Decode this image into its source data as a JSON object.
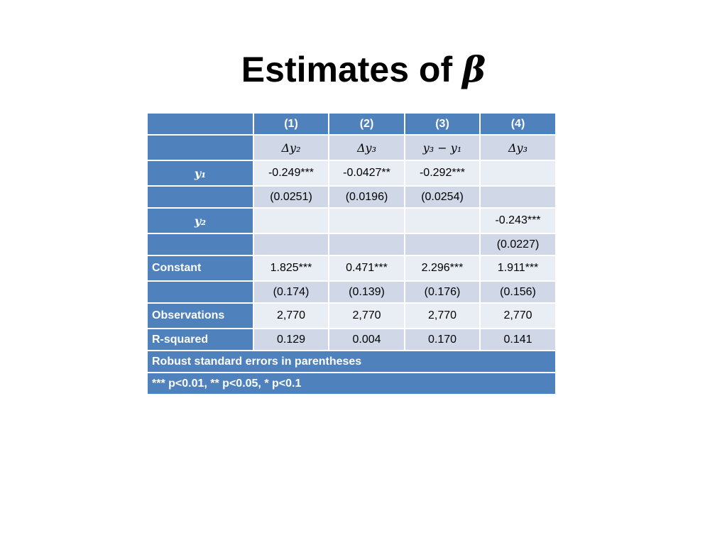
{
  "title": {
    "text": "Estimates of ",
    "symbol": "β"
  },
  "table": {
    "column_numbers": [
      "(1)",
      "(2)",
      "(3)",
      "(4)"
    ],
    "dependent_vars": [
      "Δy₂",
      "Δy₃",
      "y₃ − y₁",
      "Δy₃"
    ],
    "rows": [
      {
        "label": "y₁",
        "values": [
          "-0.249***",
          "-0.0427**",
          "-0.292***",
          ""
        ]
      },
      {
        "label": "",
        "values": [
          "(0.0251)",
          "(0.0196)",
          "(0.0254)",
          ""
        ]
      },
      {
        "label": "y₂",
        "values": [
          "",
          "",
          "",
          "-0.243***"
        ]
      },
      {
        "label": "",
        "values": [
          "",
          "",
          "",
          "(0.0227)"
        ]
      },
      {
        "label": "Constant",
        "values": [
          "1.825***",
          "0.471***",
          "2.296***",
          "1.911***"
        ]
      },
      {
        "label": "",
        "values": [
          "(0.174)",
          "(0.139)",
          "(0.176)",
          "(0.156)"
        ]
      },
      {
        "label": "Observations",
        "values": [
          "2,770",
          "2,770",
          "2,770",
          "2,770"
        ]
      },
      {
        "label": "R-squared",
        "values": [
          "0.129",
          "0.004",
          "0.170",
          "0.141"
        ]
      }
    ],
    "notes": [
      "Robust standard errors in parentheses",
      "*** p<0.01, ** p<0.05, * p<0.1"
    ]
  }
}
